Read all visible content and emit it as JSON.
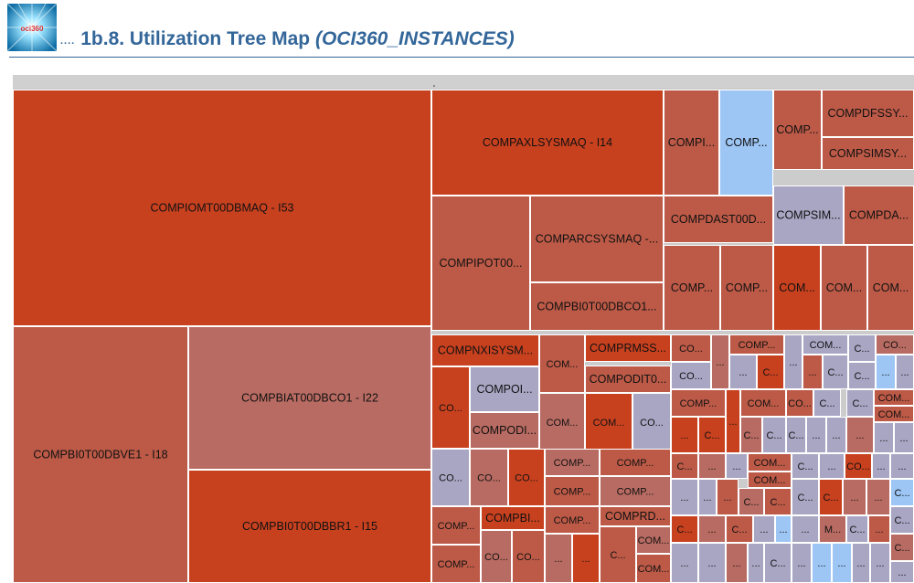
{
  "header": {
    "title_prefix": "1b.8. Utilization Tree Map ",
    "title_suffix": "(OCI360_INSTANCES)",
    "title_bullet": "....",
    "logo_text": "oci360",
    "logo_icon": "oci360-logo-icon",
    "accent_color": "#336699"
  },
  "chart_data": {
    "type": "treemap",
    "title": "",
    "colors": {
      "high": "#c8411f",
      "medium": "#bd5a47",
      "low": "#b86b62",
      "idle_blue": "#9dc6f5",
      "idle_grey": "#a9a6c4"
    },
    "items": [
      {
        "label": "COMPIOMT00DBMAQ - I53"
      },
      {
        "label": "COMPBI0T00DBVE1 - I18"
      },
      {
        "label": "COMPBIAT00DBCO1 - I22"
      },
      {
        "label": "COMPBI0T00DBBR1 - I15"
      },
      {
        "label": "COMPAXLSYSMAQ - I14"
      },
      {
        "label": "COMPIPOT00..."
      },
      {
        "label": "COMPARCSYSMAQ -..."
      },
      {
        "label": "COMPBI0T00DBCO1..."
      },
      {
        "label": "COMPI..."
      },
      {
        "label": "COMP..."
      },
      {
        "label": "COMP..."
      },
      {
        "label": "COMPDFSSY..."
      },
      {
        "label": "COMPSIMSY..."
      },
      {
        "label": "COMPDAST00D..."
      },
      {
        "label": "COMPSIM..."
      },
      {
        "label": "COMPDA..."
      },
      {
        "label": "COMP..."
      },
      {
        "label": "COMP..."
      },
      {
        "label": "COM..."
      },
      {
        "label": "COM..."
      },
      {
        "label": "COM..."
      },
      {
        "label": "COMPNXISYSM..."
      },
      {
        "label": "COMPRMSS..."
      },
      {
        "label": "COMPODIT0..."
      },
      {
        "label": "COMPOI..."
      },
      {
        "label": "COMPODI..."
      },
      {
        "label": "COMPBI..."
      },
      {
        "label": "COMPRD..."
      }
    ]
  }
}
